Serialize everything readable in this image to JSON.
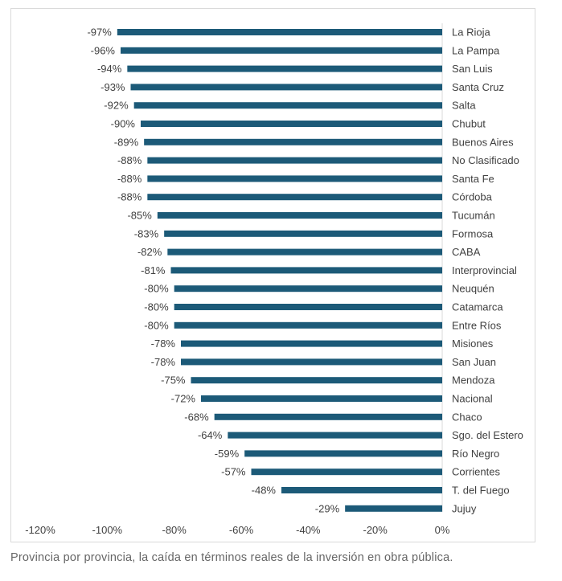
{
  "caption": "Provincia por provincia, la caída en términos reales de la inversión en obra pública.",
  "colors": {
    "bar": "#1c5a78",
    "axis": "#d9d9d9",
    "text": "#404040"
  },
  "chart_data": {
    "type": "bar",
    "orientation": "horizontal",
    "categories": [
      "La Rioja",
      "La Pampa",
      "San Luis",
      "Santa Cruz",
      "Salta",
      "Chubut",
      "Buenos Aires",
      "No Clasificado",
      "Santa Fe",
      "Córdoba",
      "Tucumán",
      "Formosa",
      "CABA",
      "Interprovincial",
      "Neuquén",
      "Catamarca",
      "Entre Ríos",
      "Misiones",
      "San Juan",
      "Mendoza",
      "Nacional",
      "Chaco",
      "Sgo. del Estero",
      "Río Negro",
      "Corrientes",
      "T. del Fuego",
      "Jujuy"
    ],
    "values": [
      -97,
      -96,
      -94,
      -93,
      -92,
      -90,
      -89,
      -88,
      -88,
      -88,
      -85,
      -83,
      -82,
      -81,
      -80,
      -80,
      -80,
      -78,
      -78,
      -75,
      -72,
      -68,
      -64,
      -59,
      -57,
      -48,
      -29
    ],
    "value_labels": [
      "-97%",
      "-96%",
      "-94%",
      "-93%",
      "-92%",
      "-90%",
      "-89%",
      "-88%",
      "-88%",
      "-88%",
      "-85%",
      "-83%",
      "-82%",
      "-81%",
      "-80%",
      "-80%",
      "-80%",
      "-78%",
      "-78%",
      "-75%",
      "-72%",
      "-68%",
      "-64%",
      "-59%",
      "-57%",
      "-48%",
      "-29%"
    ],
    "xlim": [
      -120,
      0
    ],
    "xticks": [
      -120,
      -100,
      -80,
      -60,
      -40,
      -20,
      0
    ],
    "xtick_labels": [
      "-120%",
      "-100%",
      "-80%",
      "-60%",
      "-40%",
      "-20%",
      "0%"
    ],
    "grid": false,
    "legend": "none"
  }
}
